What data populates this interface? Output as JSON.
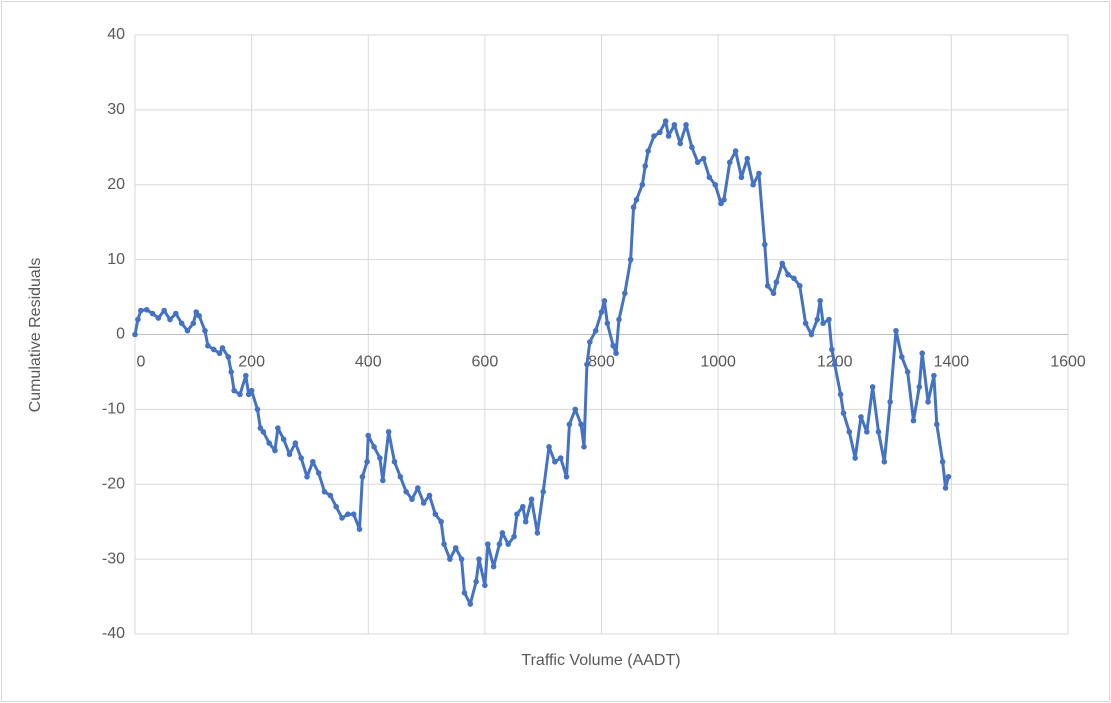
{
  "chart_data": {
    "type": "line",
    "xlabel": "Traffic Volume (AADT)",
    "ylabel": "Cumulative Residuals",
    "color": "#4472c4",
    "grid": true,
    "markers": true,
    "xlim": [
      0,
      1600
    ],
    "xticks": [
      0,
      200,
      400,
      600,
      800,
      1000,
      1200,
      1400,
      1600
    ],
    "ylim": [
      -40,
      40
    ],
    "yticks": [
      -40,
      -30,
      -20,
      -10,
      0,
      10,
      20,
      30,
      40
    ],
    "x": [
      0,
      5,
      10,
      20,
      30,
      40,
      50,
      60,
      70,
      80,
      90,
      100,
      105,
      110,
      120,
      125,
      135,
      145,
      150,
      160,
      165,
      170,
      180,
      190,
      195,
      200,
      210,
      215,
      220,
      230,
      240,
      245,
      255,
      265,
      275,
      285,
      295,
      305,
      315,
      325,
      335,
      345,
      355,
      365,
      375,
      385,
      390,
      398,
      400,
      410,
      420,
      425,
      435,
      445,
      455,
      465,
      475,
      485,
      495,
      505,
      515,
      525,
      530,
      540,
      550,
      560,
      565,
      575,
      585,
      590,
      600,
      605,
      615,
      625,
      630,
      640,
      650,
      655,
      665,
      670,
      680,
      690,
      700,
      710,
      720,
      730,
      740,
      745,
      755,
      765,
      770,
      775,
      780,
      790,
      800,
      805,
      810,
      820,
      825,
      830,
      840,
      850,
      855,
      860,
      870,
      875,
      880,
      890,
      900,
      910,
      915,
      925,
      935,
      945,
      955,
      965,
      975,
      985,
      995,
      1005,
      1010,
      1020,
      1030,
      1040,
      1050,
      1060,
      1070,
      1080,
      1085,
      1095,
      1100,
      1110,
      1120,
      1130,
      1140,
      1150,
      1160,
      1170,
      1175,
      1180,
      1190,
      1195,
      1200,
      1210,
      1215,
      1225,
      1235,
      1245,
      1255,
      1265,
      1275,
      1285,
      1295,
      1305,
      1315,
      1325,
      1335,
      1345,
      1350,
      1360,
      1370,
      1375,
      1385,
      1390,
      1395
    ],
    "values": [
      0,
      2,
      3.2,
      3.3,
      2.8,
      2.2,
      3.2,
      2,
      2.8,
      1.5,
      0.5,
      1.5,
      3,
      2.5,
      0.5,
      -1.5,
      -2,
      -2.5,
      -1.8,
      -3,
      -5,
      -7.5,
      -8,
      -5.5,
      -8,
      -7.5,
      -10,
      -12.5,
      -13,
      -14.5,
      -15.5,
      -12.5,
      -14,
      -16,
      -14.5,
      -16.5,
      -19,
      -17,
      -18.5,
      -21,
      -21.5,
      -23,
      -24.5,
      -24,
      -24,
      -26,
      -19,
      -17,
      -13.5,
      -15,
      -16.5,
      -19.5,
      -13,
      -17,
      -19,
      -21,
      -22,
      -20.5,
      -22.5,
      -21.5,
      -24,
      -25,
      -28,
      -30,
      -28.5,
      -30,
      -34.5,
      -36,
      -33,
      -30,
      -33.5,
      -28,
      -31,
      -28,
      -26.5,
      -28,
      -27,
      -24,
      -23,
      -25,
      -22,
      -26.5,
      -21,
      -15,
      -17,
      -16.5,
      -19,
      -12,
      -10,
      -12,
      -15,
      -4,
      -1,
      0.5,
      3,
      4.5,
      1.5,
      -1.5,
      -2.5,
      2,
      5.5,
      10,
      17,
      18,
      20,
      22.5,
      24.5,
      26.5,
      27,
      28.5,
      26.5,
      28,
      25.5,
      28,
      25,
      23,
      23.5,
      21,
      20,
      17.5,
      18,
      23,
      24.5,
      21,
      23.5,
      20,
      21.5,
      12,
      6.5,
      5.5,
      7,
      9.5,
      8,
      7.5,
      6.5,
      1.5,
      0,
      2,
      4.5,
      1.5,
      2,
      -2,
      -4,
      -8,
      -10.5,
      -13,
      -16.5,
      -11,
      -13,
      -7,
      -13,
      -17,
      -9,
      0.5,
      -3,
      -5,
      -11.5,
      -7,
      -2.5,
      -9,
      -5.5,
      -12,
      -17,
      -20.5,
      -19
    ]
  }
}
